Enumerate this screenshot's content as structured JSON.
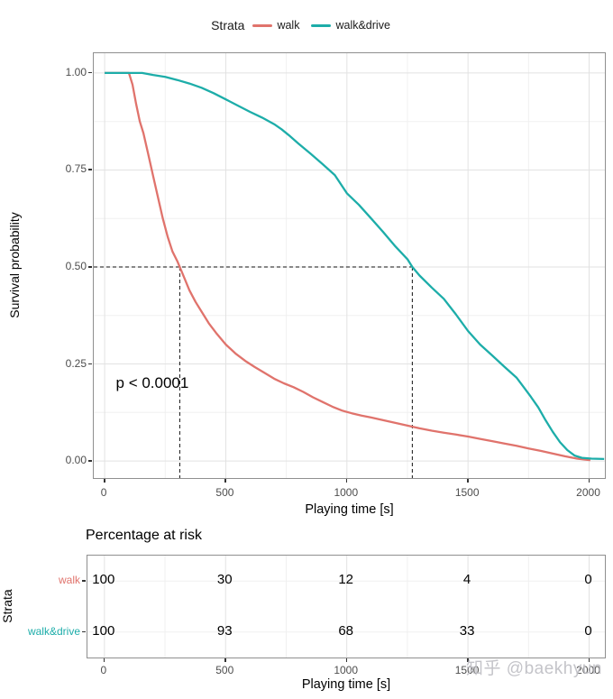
{
  "legend": {
    "title": "Strata"
  },
  "annotation_text": "p < 0.0001",
  "watermark": {
    "text": "知乎 @baekhyun",
    "color": "#c1c1c7"
  },
  "risk_section": {
    "title": "Percentage at risk"
  },
  "theme": {
    "background": "#ffffff",
    "panel_border": "#8f8f8f",
    "grid_major": "#e2e2e2",
    "grid_minor": "#f0f0f0",
    "tick_text": "#4d4d4d",
    "guide_color": "#111111",
    "walk_color": "#e0736c",
    "walk_drive_color": "#1dada9"
  },
  "chart_data": [
    {
      "type": "line",
      "xlabel": "Playing time [s]",
      "ylabel": "Survival probability",
      "xlim": [
        -45,
        2065
      ],
      "ylim": [
        -0.044,
        1.051
      ],
      "x_ticks": [
        0,
        500,
        1000,
        1500,
        2000
      ],
      "x_minor_ticks": [
        250,
        750,
        1250,
        1750
      ],
      "y_ticks": [
        0,
        0.25,
        0.5,
        0.75,
        1.0
      ],
      "y_tick_labels": [
        "0.00",
        "0.25",
        "0.50",
        "0.75",
        "1.00"
      ],
      "y_minor_ticks": [
        0.125,
        0.375,
        0.625,
        0.875
      ],
      "grid": true,
      "legend_position": "top",
      "series": [
        {
          "name": "walk",
          "color": "#e0736c",
          "points": [
            [
              0,
              1
            ],
            [
              100,
              1
            ],
            [
              115,
              0.97
            ],
            [
              130,
              0.92
            ],
            [
              145,
              0.875
            ],
            [
              160,
              0.845
            ],
            [
              180,
              0.79
            ],
            [
              200,
              0.735
            ],
            [
              220,
              0.68
            ],
            [
              240,
              0.625
            ],
            [
              260,
              0.578
            ],
            [
              280,
              0.54
            ],
            [
              300,
              0.515
            ],
            [
              310,
              0.5
            ],
            [
              330,
              0.47
            ],
            [
              350,
              0.44
            ],
            [
              375,
              0.41
            ],
            [
              400,
              0.385
            ],
            [
              430,
              0.355
            ],
            [
              460,
              0.33
            ],
            [
              500,
              0.3
            ],
            [
              540,
              0.277
            ],
            [
              580,
              0.258
            ],
            [
              620,
              0.242
            ],
            [
              660,
              0.227
            ],
            [
              700,
              0.212
            ],
            [
              740,
              0.2
            ],
            [
              780,
              0.19
            ],
            [
              820,
              0.178
            ],
            [
              860,
              0.164
            ],
            [
              900,
              0.152
            ],
            [
              940,
              0.14
            ],
            [
              980,
              0.13
            ],
            [
              1020,
              0.123
            ],
            [
              1060,
              0.117
            ],
            [
              1100,
              0.112
            ],
            [
              1150,
              0.105
            ],
            [
              1200,
              0.098
            ],
            [
              1250,
              0.091
            ],
            [
              1300,
              0.084
            ],
            [
              1350,
              0.078
            ],
            [
              1400,
              0.073
            ],
            [
              1450,
              0.068
            ],
            [
              1500,
              0.063
            ],
            [
              1550,
              0.057
            ],
            [
              1600,
              0.051
            ],
            [
              1650,
              0.045
            ],
            [
              1700,
              0.039
            ],
            [
              1750,
              0.032
            ],
            [
              1800,
              0.026
            ],
            [
              1850,
              0.019
            ],
            [
              1900,
              0.012
            ],
            [
              1950,
              0.006
            ],
            [
              2005,
              0.002
            ]
          ]
        },
        {
          "name": "walk&drive",
          "color": "#1dada9",
          "points": [
            [
              0,
              1
            ],
            [
              155,
              1
            ],
            [
              200,
              0.995
            ],
            [
              250,
              0.99
            ],
            [
              300,
              0.982
            ],
            [
              350,
              0.973
            ],
            [
              400,
              0.962
            ],
            [
              450,
              0.948
            ],
            [
              500,
              0.932
            ],
            [
              550,
              0.916
            ],
            [
              600,
              0.9
            ],
            [
              650,
              0.885
            ],
            [
              700,
              0.868
            ],
            [
              730,
              0.855
            ],
            [
              760,
              0.84
            ],
            [
              800,
              0.818
            ],
            [
              850,
              0.792
            ],
            [
              900,
              0.765
            ],
            [
              950,
              0.737
            ],
            [
              1000,
              0.69
            ],
            [
              1050,
              0.66
            ],
            [
              1100,
              0.625
            ],
            [
              1150,
              0.59
            ],
            [
              1200,
              0.553
            ],
            [
              1250,
              0.52
            ],
            [
              1270,
              0.5
            ],
            [
              1300,
              0.478
            ],
            [
              1350,
              0.447
            ],
            [
              1400,
              0.418
            ],
            [
              1450,
              0.378
            ],
            [
              1500,
              0.335
            ],
            [
              1550,
              0.3
            ],
            [
              1600,
              0.272
            ],
            [
              1650,
              0.243
            ],
            [
              1700,
              0.215
            ],
            [
              1730,
              0.19
            ],
            [
              1760,
              0.165
            ],
            [
              1790,
              0.138
            ],
            [
              1820,
              0.105
            ],
            [
              1850,
              0.075
            ],
            [
              1880,
              0.048
            ],
            [
              1910,
              0.028
            ],
            [
              1940,
              0.014
            ],
            [
              1970,
              0.008
            ],
            [
              2010,
              0.006
            ],
            [
              2062,
              0.005
            ]
          ]
        }
      ],
      "median_guides": {
        "y": 0.5,
        "x_values": [
          310,
          1270
        ],
        "style": "dashed"
      },
      "annotation": {
        "text": "p < 0.0001",
        "x": 50,
        "y": 0.197
      }
    },
    {
      "type": "table",
      "title": "Percentage at risk",
      "ylabel": "Strata",
      "xlabel": "Playing time [s]",
      "xlim": [
        -70,
        2065
      ],
      "x_ticks": [
        0,
        500,
        1000,
        1500,
        2000
      ],
      "x_minor_ticks": [
        250,
        750,
        1250,
        1750
      ],
      "columns": [
        0,
        500,
        1000,
        1500,
        2000
      ],
      "rows": [
        {
          "label": "walk",
          "color": "#e0736c",
          "values": [
            100,
            30,
            12,
            4,
            0
          ]
        },
        {
          "label": "walk&drive",
          "color": "#1dada9",
          "values": [
            100,
            93,
            68,
            33,
            0
          ]
        }
      ]
    }
  ]
}
